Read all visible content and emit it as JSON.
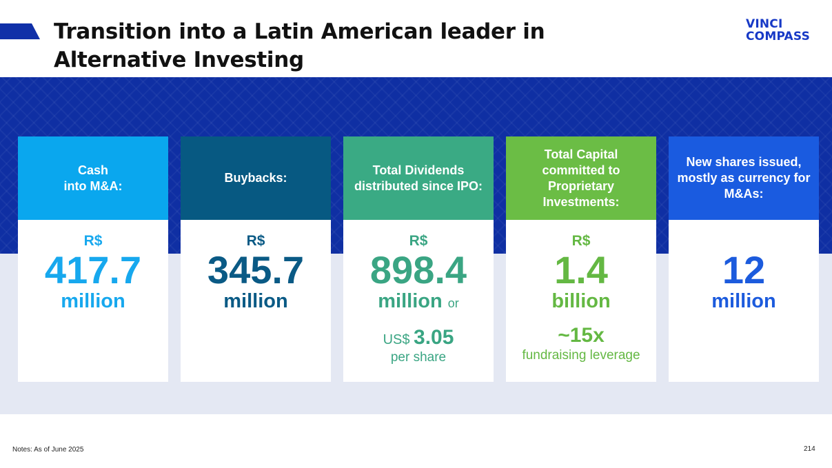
{
  "header": {
    "title": "Transition into a Latin American leader in Alternative Investing",
    "logo_line1": "VINCI",
    "logo_line2": "COMPASS"
  },
  "colors": {
    "band": "#0f2fa3",
    "grey_band": "#e4e8f3",
    "logo": "#1739c6"
  },
  "cards": [
    {
      "header": "Cash\ninto M&A:",
      "header_color": "#0aa7ee",
      "text_color": "#17a8ee",
      "currency": "R$",
      "value": "417.7",
      "unit": "million"
    },
    {
      "header": "Buybacks:",
      "header_color": "#075982",
      "text_color": "#0a5a85",
      "currency": "R$",
      "value": "345.7",
      "unit": "million"
    },
    {
      "header": "Total Dividends distributed since IPO:",
      "header_color": "#3aaa84",
      "text_color": "#3aa583",
      "currency": "R$",
      "value": "898.4",
      "unit": "million",
      "unit_suffix": "or",
      "extra_prefix": "US$",
      "extra_value": "3.05",
      "extra_caption": "per share"
    },
    {
      "header": "Total Capital committed to Proprietary Investments:",
      "header_color": "#6bbd45",
      "text_color": "#64b843",
      "currency": "R$",
      "value": "1.4",
      "unit": "billion",
      "extra_value": "~15x",
      "extra_caption": "fundraising leverage"
    },
    {
      "header": "New shares issued, mostly as currency for M&As:",
      "header_color": "#1a5be0",
      "text_color": "#1c5bdd",
      "currency": "",
      "value": "12",
      "unit": "million"
    }
  ],
  "footer": {
    "notes": "Notes: As of June 2025",
    "page_number": "214"
  }
}
